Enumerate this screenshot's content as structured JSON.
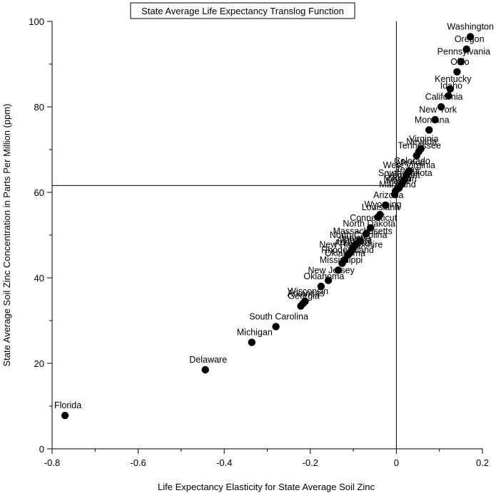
{
  "chart_data": {
    "type": "scatter",
    "title": "State Average Life Expectancy Translog Function",
    "xlabel": "Life Expectancy Elasticity for State Average Soil Zinc",
    "ylabel": "State Average Soil Zinc Concentration in Parts Per Million (ppm)",
    "xlim": [
      -0.8,
      0.2
    ],
    "ylim": [
      0,
      100
    ],
    "x_ticks": [
      "-0.8",
      "-0.6",
      "-0.4",
      "-0.2",
      "0",
      "0.2"
    ],
    "y_ticks": [
      "0",
      "20",
      "40",
      "60",
      "80",
      "100"
    ],
    "reference_lines": {
      "x": 0,
      "y": 61.6
    },
    "grid": false,
    "points": [
      {
        "label": "Washington",
        "x": 0.172,
        "y": 96.4
      },
      {
        "label": "Oregon",
        "x": 0.163,
        "y": 93.5
      },
      {
        "label": "Pennsylvania",
        "x": 0.15,
        "y": 90.6
      },
      {
        "label": "Ohio",
        "x": 0.141,
        "y": 88.2
      },
      {
        "label": "Kentucky",
        "x": 0.125,
        "y": 84.2
      },
      {
        "label": "Idaho",
        "x": 0.121,
        "y": 82.6
      },
      {
        "label": "California",
        "x": 0.104,
        "y": 80.0
      },
      {
        "label": "New York",
        "x": 0.09,
        "y": 77.0
      },
      {
        "label": "Montana",
        "x": 0.076,
        "y": 74.6
      },
      {
        "label": "Virginia",
        "x": 0.057,
        "y": 70.2
      },
      {
        "label": "Nevada",
        "x": 0.052,
        "y": 69.5
      },
      {
        "label": "Tennessee",
        "x": 0.047,
        "y": 68.6
      },
      {
        "label": "Colorado",
        "x": 0.03,
        "y": 65.0
      },
      {
        "label": "Mexico",
        "x": 0.027,
        "y": 64.6
      },
      {
        "label": "West Virginia",
        "x": 0.023,
        "y": 64.0
      },
      {
        "label": "Texas",
        "x": 0.019,
        "y": 63.0
      },
      {
        "label": "South Dakota",
        "x": 0.014,
        "y": 62.2
      },
      {
        "label": "Vermont",
        "x": 0.01,
        "y": 61.7
      },
      {
        "label": "Iowa",
        "x": 0.006,
        "y": 61.0
      },
      {
        "label": "Missouri",
        "x": 0.002,
        "y": 60.8
      },
      {
        "label": "Maine",
        "x": -0.002,
        "y": 60.3
      },
      {
        "label": "Maryland",
        "x": -0.004,
        "y": 59.5
      },
      {
        "label": "Arizona",
        "x": -0.025,
        "y": 57.0
      },
      {
        "label": "Wyoming",
        "x": -0.038,
        "y": 54.8
      },
      {
        "label": "Louisiana",
        "x": -0.043,
        "y": 54.2
      },
      {
        "label": "Connecticut",
        "x": -0.06,
        "y": 51.7
      },
      {
        "label": "North Dakota",
        "x": -0.07,
        "y": 50.3
      },
      {
        "label": "Massachusetts",
        "x": -0.085,
        "y": 48.6
      },
      {
        "label": "North Carolina",
        "x": -0.095,
        "y": 47.7
      },
      {
        "label": "Indiana",
        "x": -0.1,
        "y": 47.0
      },
      {
        "label": "Alabama",
        "x": -0.104,
        "y": 46.5
      },
      {
        "label": "Arkansas",
        "x": -0.108,
        "y": 45.8
      },
      {
        "label": "New Hampshire",
        "x": -0.112,
        "y": 45.4
      },
      {
        "label": "Rhode Island",
        "x": -0.12,
        "y": 44.2
      },
      {
        "label": "Oklahoma",
        "x": -0.126,
        "y": 43.4
      },
      {
        "label": "Mississippi",
        "x": -0.135,
        "y": 41.8
      },
      {
        "label": "New Jersey",
        "x": -0.158,
        "y": 39.4
      },
      {
        "label": "Oklahoma",
        "x": -0.175,
        "y": 38.0
      },
      {
        "label": "Wisconsin",
        "x": -0.212,
        "y": 34.5
      },
      {
        "label": "Arkansas",
        "x": -0.217,
        "y": 34.0
      },
      {
        "label": "Georgia",
        "x": -0.222,
        "y": 33.4
      },
      {
        "label": "South Carolina",
        "x": -0.28,
        "y": 28.6
      },
      {
        "label": "Michigan",
        "x": -0.336,
        "y": 24.9
      },
      {
        "label": "Delaware",
        "x": -0.444,
        "y": 18.5
      },
      {
        "label": "Florida",
        "x": -0.77,
        "y": 7.8
      }
    ]
  }
}
